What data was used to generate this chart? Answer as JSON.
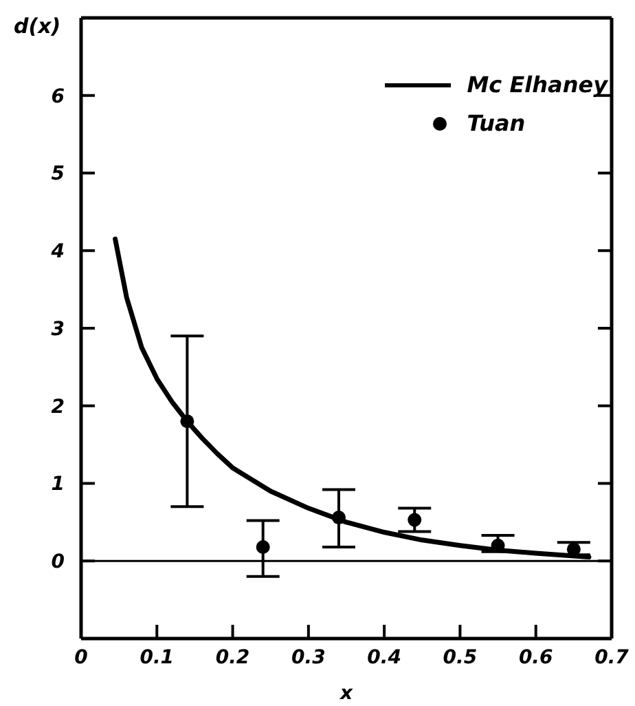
{
  "chart_data": {
    "type": "line",
    "xlabel": "x",
    "ylabel": "d(x)",
    "xlim": [
      0,
      0.7
    ],
    "xticks": [
      0,
      0.1,
      0.2,
      0.3,
      0.4,
      0.5,
      0.6,
      0.7
    ],
    "ylim": [
      -1,
      7
    ],
    "yticks": [
      0,
      1,
      2,
      3,
      4,
      5,
      6
    ],
    "grid": false,
    "legend": "top right",
    "ref_lines": [
      {
        "axis": "y",
        "value": 0,
        "color": "#000000"
      }
    ],
    "series": [
      {
        "name": "Mc Elhaney",
        "color": "#000000",
        "marker": "none",
        "line_style": "solid",
        "x": [
          0.045,
          0.06,
          0.08,
          0.1,
          0.12,
          0.14,
          0.16,
          0.18,
          0.2,
          0.25,
          0.3,
          0.35,
          0.4,
          0.45,
          0.5,
          0.55,
          0.6,
          0.67
        ],
        "values": [
          4.15,
          3.4,
          2.75,
          2.35,
          2.05,
          1.8,
          1.58,
          1.38,
          1.2,
          0.9,
          0.68,
          0.5,
          0.37,
          0.27,
          0.2,
          0.14,
          0.1,
          0.05
        ]
      },
      {
        "name": "Tuan",
        "type": "scatter",
        "color": "#000000",
        "marker": "circle",
        "x": [
          0.14,
          0.24,
          0.34,
          0.44,
          0.55,
          0.65
        ],
        "values": [
          1.8,
          0.18,
          0.56,
          0.53,
          0.2,
          0.15
        ],
        "errors": [
          [
            0.7,
            2.9
          ],
          [
            -0.2,
            0.52
          ],
          [
            0.18,
            0.92
          ],
          [
            0.38,
            0.68
          ],
          [
            0.12,
            0.33
          ],
          [
            0.08,
            0.24
          ]
        ]
      }
    ]
  }
}
